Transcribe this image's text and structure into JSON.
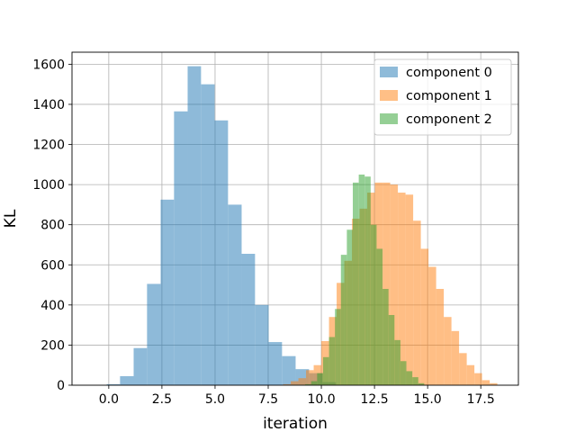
{
  "chart_data": {
    "type": "bar",
    "subtype": "overlaid-histogram",
    "title": "",
    "xlabel": "iteration",
    "ylabel": "KL",
    "xlim": [
      -1.73,
      19.27
    ],
    "ylim": [
      0,
      1660
    ],
    "xticks": [
      0.0,
      2.5,
      5.0,
      7.5,
      10.0,
      12.5,
      15.0,
      17.5
    ],
    "xtick_labels": [
      "0.0",
      "2.5",
      "5.0",
      "7.5",
      "10.0",
      "12.5",
      "15.0",
      "17.5"
    ],
    "yticks": [
      0,
      200,
      400,
      600,
      800,
      1000,
      1200,
      1400,
      1600
    ],
    "ytick_labels": [
      "0",
      "200",
      "400",
      "600",
      "800",
      "1000",
      "1200",
      "1400",
      "1600"
    ],
    "grid": true,
    "legend_position": "top-right",
    "alpha": 0.5,
    "series": [
      {
        "name": "component 0",
        "color": "#1f77b4",
        "bin_edges": [
          -0.1,
          0.53,
          1.17,
          1.8,
          2.44,
          3.07,
          3.71,
          4.34,
          4.98,
          5.61,
          6.25,
          6.88,
          7.52,
          8.15,
          8.79,
          9.42,
          10.06,
          10.69
        ],
        "values": [
          5,
          45,
          185,
          505,
          925,
          1365,
          1590,
          1500,
          1320,
          900,
          655,
          400,
          215,
          145,
          80,
          60,
          15
        ]
      },
      {
        "name": "component 1",
        "color": "#ff7f0e",
        "bin_edges": [
          8.2,
          8.56,
          8.92,
          9.28,
          9.64,
          10.0,
          10.36,
          10.72,
          11.08,
          11.44,
          11.8,
          12.16,
          12.52,
          12.88,
          13.24,
          13.6,
          13.96,
          14.32,
          14.68,
          15.04,
          15.4,
          15.76,
          16.12,
          16.48,
          16.84,
          17.2,
          17.56,
          17.92,
          18.28
        ],
        "values": [
          5,
          20,
          35,
          75,
          100,
          220,
          340,
          510,
          620,
          830,
          880,
          960,
          1010,
          1010,
          1000,
          960,
          950,
          820,
          680,
          590,
          480,
          340,
          270,
          160,
          100,
          60,
          25,
          10
        ]
      },
      {
        "name": "component 2",
        "color": "#2ca02c",
        "bin_edges": [
          9.24,
          9.52,
          9.8,
          10.08,
          10.36,
          10.64,
          10.92,
          11.2,
          11.48,
          11.76,
          12.04,
          12.32,
          12.6,
          12.88,
          13.16,
          13.44,
          13.72,
          14.0,
          14.28,
          14.56,
          14.84
        ],
        "values": [
          5,
          20,
          60,
          140,
          240,
          380,
          650,
          775,
          1010,
          1050,
          1040,
          800,
          680,
          480,
          350,
          225,
          120,
          70,
          40,
          10
        ]
      }
    ]
  }
}
